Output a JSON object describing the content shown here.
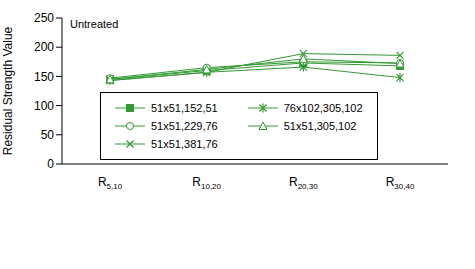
{
  "chart_data": {
    "type": "line",
    "title": "Untreated",
    "y_label": "Residual Strength Value",
    "categories": [
      "R5,10",
      "R10,20",
      "R20,30",
      "R30,40"
    ],
    "ylim": [
      0,
      250
    ],
    "yticks": [
      0,
      50,
      100,
      150,
      200,
      250
    ],
    "grid": false,
    "legend": "bottom",
    "series": [
      {
        "name": "51x51,152,51",
        "color": "#339933",
        "marker": "square",
        "values": [
          145,
          160,
          173,
          168
        ]
      },
      {
        "name": "51x51,229,76",
        "color": "#339933",
        "marker": "circle",
        "values": [
          147,
          165,
          175,
          173
        ]
      },
      {
        "name": "51x51,381,76",
        "color": "#339933",
        "marker": "x",
        "values": [
          143,
          157,
          189,
          186
        ]
      },
      {
        "name": "76x102,305,102",
        "color": "#339933",
        "marker": "star",
        "values": [
          143,
          157,
          166,
          148
        ]
      },
      {
        "name": "51x51,305,102",
        "color": "#339933",
        "marker": "triangle",
        "values": [
          145,
          162,
          180,
          172
        ]
      }
    ]
  }
}
